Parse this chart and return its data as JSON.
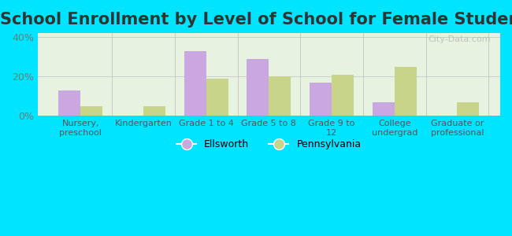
{
  "title": "School Enrollment by Level of School for Female Students",
  "categories": [
    "Nursery,\npreschool",
    "Kindergarten",
    "Grade 1 to 4",
    "Grade 5 to 8",
    "Grade 9 to\n12",
    "College\nundergrad",
    "Graduate or\nprofessional"
  ],
  "ellsworth": [
    13,
    0,
    33,
    29,
    17,
    7,
    0
  ],
  "pennsylvania": [
    5,
    5,
    19,
    20,
    21,
    25,
    7
  ],
  "ellsworth_color": "#c9a8e0",
  "pennsylvania_color": "#c8d48a",
  "background_outer": "#00e5ff",
  "background_inner": "#e8f2e0",
  "yticks": [
    0,
    20,
    40
  ],
  "ylim": [
    0,
    42
  ],
  "title_fontsize": 15,
  "legend_labels": [
    "Ellsworth",
    "Pennsylvania"
  ],
  "watermark": "City-Data.com"
}
